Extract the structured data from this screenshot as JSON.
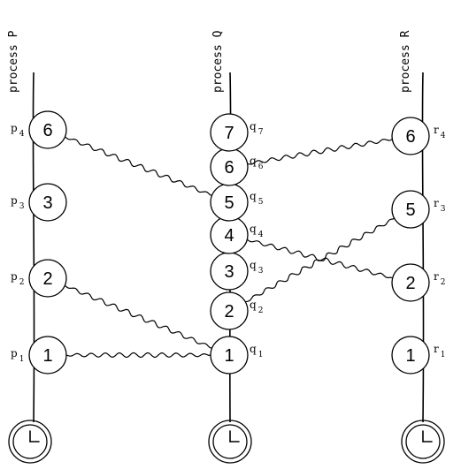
{
  "processes": [
    {
      "id": "P",
      "title": "process P",
      "events": [
        {
          "n": 1,
          "label": "p",
          "sub": "1"
        },
        {
          "n": 2,
          "label": "p",
          "sub": "2"
        },
        {
          "n": 3,
          "label": "p",
          "sub": "3"
        },
        {
          "n": 6,
          "label": "p",
          "sub": "4"
        }
      ]
    },
    {
      "id": "Q",
      "title": "process Q",
      "events": [
        {
          "n": 1,
          "label": "q",
          "sub": "1"
        },
        {
          "n": 2,
          "label": "q",
          "sub": "2"
        },
        {
          "n": 3,
          "label": "q",
          "sub": "3"
        },
        {
          "n": 4,
          "label": "q",
          "sub": "4"
        },
        {
          "n": 5,
          "label": "q",
          "sub": "5"
        },
        {
          "n": 6,
          "label": "q",
          "sub": "6"
        },
        {
          "n": 7,
          "label": "q",
          "sub": "7"
        }
      ]
    },
    {
      "id": "R",
      "title": "process R",
      "events": [
        {
          "n": 1,
          "label": "r",
          "sub": "1"
        },
        {
          "n": 2,
          "label": "r",
          "sub": "2"
        },
        {
          "n": 5,
          "label": "r",
          "sub": "3"
        },
        {
          "n": 6,
          "label": "r",
          "sub": "4"
        }
      ]
    }
  ],
  "messages": [
    {
      "from": "p1",
      "to": "q1"
    },
    {
      "from": "p2",
      "to": "q1"
    },
    {
      "from": "p4",
      "to": "q5"
    },
    {
      "from": "q2",
      "to": "r3"
    },
    {
      "from": "q4",
      "to": "r2"
    },
    {
      "from": "q6",
      "to": "r4"
    }
  ],
  "icons": [
    "clock-icon",
    "clock-icon",
    "clock-icon"
  ]
}
